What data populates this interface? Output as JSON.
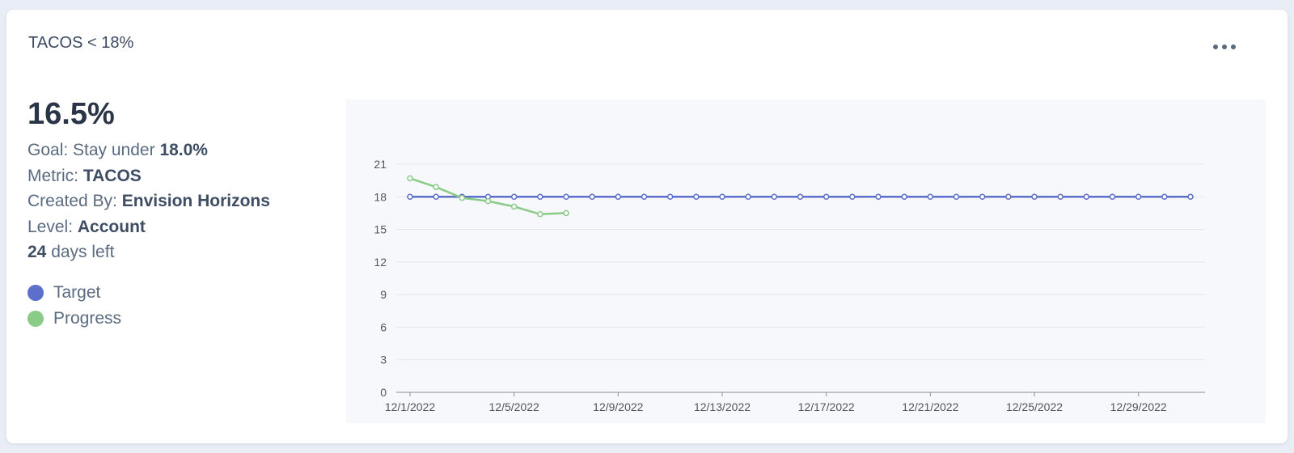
{
  "header": {
    "title": "TACOS < 18%"
  },
  "stats": {
    "value": "16.5%",
    "goal": {
      "label": "Goal: Stay under",
      "value": "18.0%"
    },
    "metric": {
      "label": "Metric:",
      "value": "TACOS"
    },
    "created_by": {
      "label": "Created By:",
      "value": "Envision Horizons"
    },
    "level": {
      "label": "Level:",
      "value": "Account"
    },
    "days_left": {
      "value": "24",
      "label": "days left"
    }
  },
  "chart_data": {
    "type": "line",
    "categories": [
      "12/1/2022",
      null,
      null,
      null,
      "12/5/2022",
      null,
      null,
      null,
      "12/9/2022",
      null,
      null,
      null,
      "12/13/2022",
      null,
      null,
      null,
      "12/17/2022",
      null,
      null,
      null,
      "12/21/2022",
      null,
      null,
      null,
      "12/25/2022",
      null,
      null,
      null,
      "12/29/2022",
      null,
      null
    ],
    "series": [
      {
        "name": "Target",
        "color": "#5b6fcb",
        "values": [
          18,
          18,
          18,
          18,
          18,
          18,
          18,
          18,
          18,
          18,
          18,
          18,
          18,
          18,
          18,
          18,
          18,
          18,
          18,
          18,
          18,
          18,
          18,
          18,
          18,
          18,
          18,
          18,
          18,
          18,
          18
        ]
      },
      {
        "name": "Progress",
        "color": "#8acb88",
        "values": [
          19.7,
          18.9,
          17.9,
          17.6,
          17.1,
          16.4,
          16.5,
          null,
          null,
          null,
          null,
          null,
          null,
          null,
          null,
          null,
          null,
          null,
          null,
          null,
          null,
          null,
          null,
          null,
          null,
          null,
          null,
          null,
          null,
          null,
          null
        ]
      }
    ],
    "ylim": [
      0,
      21
    ],
    "yticks": [
      0,
      3,
      6,
      9,
      12,
      15,
      18,
      21
    ],
    "grid": true
  }
}
